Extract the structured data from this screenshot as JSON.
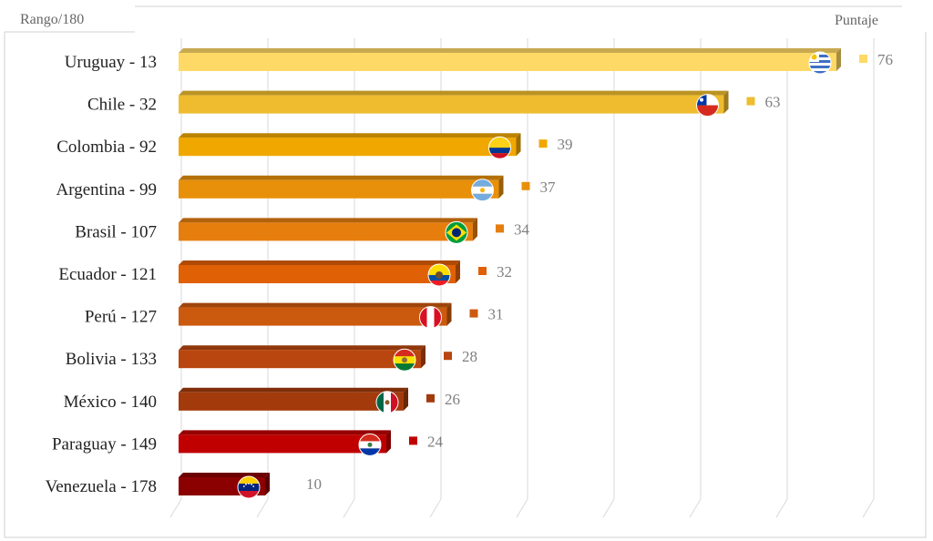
{
  "chart_data": {
    "type": "bar",
    "orientation": "horizontal",
    "style": "3d",
    "top_left_label": "Rango/180",
    "top_right_label": "Puntaje",
    "categories": [
      "Uruguay - 13",
      "Chile - 32",
      "Colombia - 92",
      "Argentina - 99",
      "Brasil - 107",
      "Ecuador - 121",
      "Perú - 127",
      "Bolivia - 133",
      "México - 140",
      "Paraguay - 149",
      "Venezuela - 178"
    ],
    "values": [
      76,
      63,
      39,
      37,
      34,
      32,
      31,
      28,
      26,
      24,
      10
    ],
    "colors": [
      "#ffd966",
      "#eebc2e",
      "#f0a800",
      "#e8900a",
      "#e67e0e",
      "#e06005",
      "#cc5a0e",
      "#b8460e",
      "#a33a0c",
      "#c00000",
      "#8b0000"
    ],
    "flags": [
      "uruguay-flag",
      "chile-flag",
      "colombia-flag",
      "argentina-flag",
      "brazil-flag",
      "ecuador-flag",
      "peru-flag",
      "bolivia-flag",
      "mexico-flag",
      "paraguay-flag",
      "venezuela-flag"
    ],
    "xlim": [
      0,
      80
    ],
    "grid": true,
    "legend": "none"
  }
}
